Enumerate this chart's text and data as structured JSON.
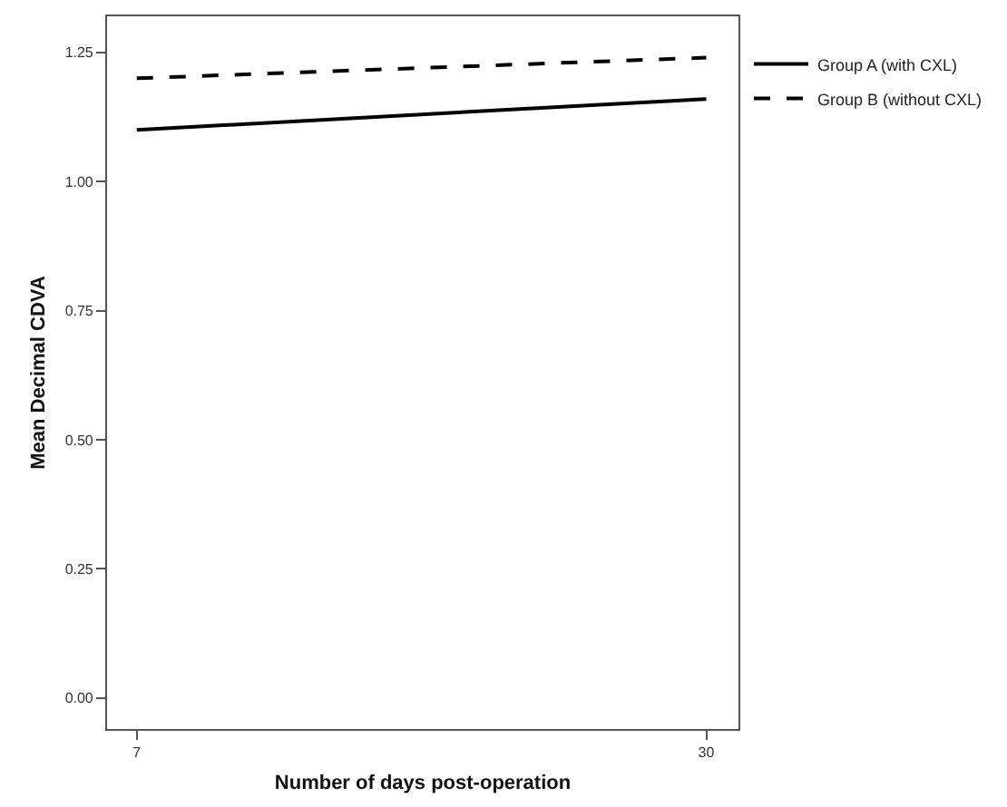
{
  "chart_data": {
    "type": "line",
    "xlabel": "Number of days post-operation",
    "ylabel": "Mean Decimal CDVA",
    "x": [
      7,
      30
    ],
    "series": [
      {
        "name": "Group A (with CXL)",
        "color": "#000000",
        "values": [
          1.1,
          1.16
        ],
        "line_style": "solid"
      },
      {
        "name": "Group B (without CXL)",
        "color": "#000000",
        "values": [
          1.2,
          1.24
        ],
        "line_style": "dashed"
      }
    ],
    "xlim": [
      5.8,
      31.3
    ],
    "xticks": [
      7,
      30
    ],
    "ylim": [
      -0.06,
      1.32
    ],
    "yticks": [
      {
        "value": 0,
        "label": "0.00"
      },
      {
        "value": 0.25,
        "label": "0.25"
      },
      {
        "value": 0.5,
        "label": "0.50"
      },
      {
        "value": 0.75,
        "label": "0.75"
      },
      {
        "value": 1,
        "label": "1.00"
      },
      {
        "value": 1.25,
        "label": "1.25"
      }
    ],
    "grid": false,
    "legend": "top right",
    "marker": "none"
  }
}
